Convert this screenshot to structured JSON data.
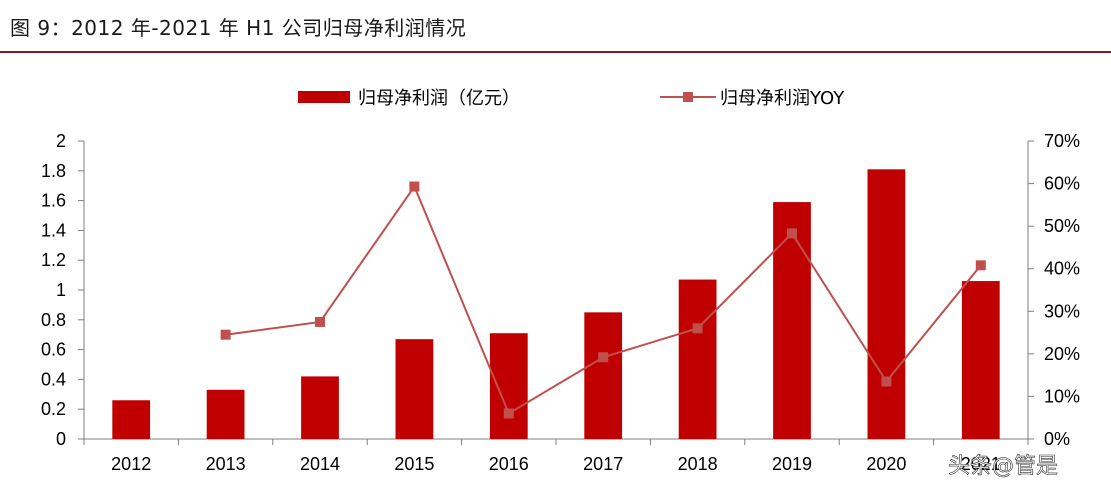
{
  "figure": {
    "title": "图 9：2012 年-2021 年 H1 公司归母净利润情况"
  },
  "watermark": "头条@管是",
  "chart_data": {
    "type": "bar+line",
    "categories": [
      "2012",
      "2013",
      "2014",
      "2015",
      "2016",
      "2017",
      "2018",
      "2019",
      "2020",
      "2021H1"
    ],
    "series": [
      {
        "name": "归母净利润（亿元）",
        "type": "bar",
        "axis": "left",
        "color": "#c00000",
        "values": [
          0.26,
          0.33,
          0.42,
          0.67,
          0.71,
          0.85,
          1.07,
          1.59,
          1.81,
          1.06
        ]
      },
      {
        "name": "归母净利润YOY",
        "type": "line",
        "axis": "right",
        "color": "#c0504d",
        "values": [
          null,
          24.5,
          27.5,
          59.3,
          6.0,
          19.2,
          26.0,
          48.3,
          13.5,
          40.8
        ]
      }
    ],
    "y_left": {
      "min": 0,
      "max": 2,
      "ticks": [
        "0",
        "0.2",
        "0.4",
        "0.6",
        "0.8",
        "1",
        "1.2",
        "1.4",
        "1.6",
        "1.8",
        "2"
      ]
    },
    "y_right": {
      "min": 0,
      "max": 70,
      "ticks": [
        "0%",
        "10%",
        "20%",
        "30%",
        "40%",
        "50%",
        "60%",
        "70%"
      ]
    },
    "x_labels": [
      "2012",
      "2013",
      "2014",
      "2015",
      "2016",
      "2017",
      "2018",
      "2019",
      "2020",
      "2021"
    ],
    "legend": "top-center",
    "grid": false
  }
}
